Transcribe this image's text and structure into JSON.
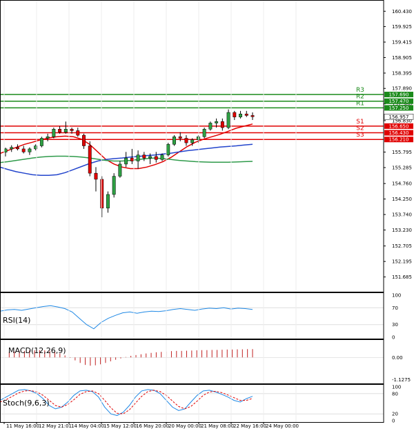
{
  "chart_data": {
    "type": "candlestick",
    "instrument": "",
    "price_axis": {
      "range": [
        151.2,
        160.8
      ],
      "ticks": [
        "160.430",
        "159.925",
        "159.415",
        "158.905",
        "158.395",
        "157.890",
        "157.380",
        "156.830",
        "155.795",
        "155.285",
        "154.760",
        "154.250",
        "153.740",
        "153.230",
        "152.705",
        "152.195",
        "151.685"
      ]
    },
    "time_axis": {
      "ticks": [
        "11 May 16:00",
        "12 May 21:01",
        "14 May 04:00",
        "15 May 12:00",
        "16 May 20:00",
        "20 May 00:00",
        "21 May 08:00",
        "22 May 16:00",
        "24 May 00:00"
      ]
    },
    "current_price": "156.957",
    "levels": {
      "resistance": [
        {
          "name": "R3",
          "value": 157.69,
          "label": "157.690"
        },
        {
          "name": "R2",
          "value": 157.47,
          "label": "157.470"
        },
        {
          "name": "R1",
          "value": 157.25,
          "label": "157.250"
        }
      ],
      "support": [
        {
          "name": "S1",
          "value": 156.65,
          "label": "156.650"
        },
        {
          "name": "S2",
          "value": 156.43,
          "label": "156.430"
        },
        {
          "name": "S3",
          "value": 156.21,
          "label": "156.210"
        }
      ],
      "resistance_color": "#1a8a1a",
      "support_color": "#e00000"
    },
    "candles": [
      [
        155.79,
        155.94,
        155.65,
        155.9
      ],
      [
        155.9,
        156.02,
        155.8,
        155.95
      ],
      [
        155.95,
        156.05,
        155.85,
        155.9
      ],
      [
        155.9,
        156.0,
        155.75,
        155.8
      ],
      [
        155.8,
        155.95,
        155.7,
        155.9
      ],
      [
        155.9,
        156.05,
        155.85,
        156.0
      ],
      [
        156.0,
        156.3,
        155.95,
        156.25
      ],
      [
        156.25,
        156.4,
        156.15,
        156.3
      ],
      [
        156.3,
        156.6,
        156.25,
        156.55
      ],
      [
        156.55,
        156.65,
        156.4,
        156.45
      ],
      [
        156.45,
        156.8,
        156.4,
        156.55
      ],
      [
        156.55,
        156.6,
        156.4,
        156.5
      ],
      [
        156.5,
        156.6,
        156.3,
        156.35
      ],
      [
        156.35,
        156.4,
        155.9,
        156.0
      ],
      [
        156.0,
        156.15,
        155.0,
        155.1
      ],
      [
        155.1,
        155.3,
        154.5,
        154.9
      ],
      [
        154.9,
        155.0,
        153.65,
        153.95
      ],
      [
        153.95,
        154.5,
        153.8,
        154.4
      ],
      [
        154.4,
        155.1,
        154.3,
        155.0
      ],
      [
        155.0,
        155.5,
        154.95,
        155.4
      ],
      [
        155.4,
        155.8,
        155.3,
        155.6
      ],
      [
        155.6,
        155.9,
        155.4,
        155.5
      ],
      [
        155.5,
        155.85,
        155.25,
        155.7
      ],
      [
        155.7,
        155.8,
        155.5,
        155.6
      ],
      [
        155.6,
        155.75,
        155.4,
        155.65
      ],
      [
        155.65,
        155.8,
        155.45,
        155.55
      ],
      [
        155.55,
        155.75,
        155.5,
        155.7
      ],
      [
        155.7,
        156.1,
        155.65,
        156.05
      ],
      [
        156.05,
        156.35,
        156.0,
        156.3
      ],
      [
        156.3,
        156.45,
        156.15,
        156.25
      ],
      [
        156.25,
        156.35,
        156.0,
        156.1
      ],
      [
        156.1,
        156.25,
        156.0,
        156.2
      ],
      [
        156.2,
        156.35,
        156.1,
        156.3
      ],
      [
        156.3,
        156.6,
        156.25,
        156.55
      ],
      [
        156.55,
        156.8,
        156.5,
        156.75
      ],
      [
        156.75,
        156.9,
        156.6,
        156.8
      ],
      [
        156.8,
        156.9,
        156.5,
        156.6
      ],
      [
        156.6,
        157.2,
        156.55,
        157.1
      ],
      [
        157.1,
        157.15,
        156.85,
        156.95
      ],
      [
        156.95,
        157.15,
        156.9,
        157.05
      ],
      [
        157.05,
        157.15,
        156.95,
        157.0
      ],
      [
        157.0,
        157.1,
        156.85,
        156.96
      ]
    ],
    "moving_averages": [
      {
        "color": "#e00000",
        "values": [
          155.75,
          155.85,
          155.95,
          156.05,
          156.12,
          156.2,
          156.26,
          156.3,
          156.32,
          156.3,
          156.22,
          156.05,
          155.8,
          155.55,
          155.4,
          155.3,
          155.25,
          155.25,
          155.3,
          155.38,
          155.48,
          155.62,
          155.8,
          155.98,
          156.12,
          156.22,
          156.3,
          156.38,
          156.48,
          156.58,
          156.65,
          156.72
        ]
      },
      {
        "color": "#2244cc",
        "values": [
          155.3,
          155.22,
          155.15,
          155.1,
          155.05,
          155.03,
          155.03,
          155.05,
          155.12,
          155.22,
          155.32,
          155.42,
          155.5,
          155.55,
          155.58,
          155.6,
          155.63,
          155.65,
          155.68,
          155.7,
          155.73,
          155.76,
          155.8,
          155.84,
          155.87,
          155.9,
          155.93,
          155.96,
          155.98,
          156.0,
          156.03,
          156.05
        ]
      },
      {
        "color": "#2e9a4a",
        "values": [
          155.45,
          155.48,
          155.52,
          155.56,
          155.6,
          155.63,
          155.65,
          155.66,
          155.66,
          155.65,
          155.63,
          155.6,
          155.56,
          155.52,
          155.5,
          155.5,
          155.52,
          155.55,
          155.58,
          155.6,
          155.58,
          155.55,
          155.52,
          155.5,
          155.48,
          155.47,
          155.46,
          155.46,
          155.46,
          155.47,
          155.48,
          155.49
        ]
      }
    ],
    "rsi": {
      "label": "RSI(14)",
      "ticks": [
        "100",
        "70",
        "30",
        "0"
      ],
      "range": [
        0,
        100
      ],
      "color": "#1e88e5",
      "values": [
        62,
        65,
        66,
        64,
        67,
        70,
        73,
        75,
        72,
        68,
        60,
        45,
        30,
        20,
        35,
        45,
        52,
        58,
        60,
        57,
        60,
        62,
        61,
        63,
        66,
        68,
        66,
        64,
        67,
        69,
        68,
        70,
        67,
        69,
        68,
        66
      ]
    },
    "macd": {
      "label": "MACD(12,26,9)",
      "ticks": [
        "0.00",
        "-1.1275"
      ],
      "range": [
        -1.25,
        0.85
      ],
      "bar_color": "#c02020",
      "values": [
        0.25,
        0.28,
        0.3,
        0.32,
        0.33,
        0.35,
        0.36,
        0.37,
        0.36,
        0.33,
        0.28,
        0.2,
        0.1,
        -0.02,
        -0.15,
        -0.28,
        -0.38,
        -0.42,
        -0.4,
        -0.35,
        -0.28,
        -0.2,
        -0.12,
        -0.05,
        0.02,
        0.08,
        0.12,
        0.16,
        0.2,
        0.23,
        0.26,
        0.28,
        0.3,
        0.32,
        0.33,
        0.33,
        0.34,
        0.35,
        0.36,
        0.37,
        0.37,
        0.38,
        0.38,
        0.39,
        0.4,
        0.4,
        0.41,
        0.41,
        0.42,
        0.42
      ]
    },
    "stoch": {
      "label": "Stoch(9,6,3)",
      "ticks": [
        "100",
        "80",
        "20",
        "0"
      ],
      "range": [
        0,
        100
      ],
      "k_color": "#1e88e5",
      "d_color": "#e00000",
      "k": [
        60,
        70,
        80,
        90,
        92,
        88,
        80,
        65,
        45,
        35,
        40,
        55,
        75,
        88,
        90,
        86,
        70,
        40,
        20,
        15,
        25,
        45,
        70,
        88,
        92,
        90,
        80,
        60,
        40,
        30,
        35,
        55,
        75,
        88,
        90,
        85,
        78,
        70,
        60,
        55,
        65,
        72
      ],
      "d": [
        55,
        62,
        72,
        82,
        88,
        89,
        85,
        75,
        60,
        45,
        40,
        48,
        62,
        78,
        86,
        88,
        80,
        60,
        38,
        22,
        20,
        32,
        52,
        72,
        86,
        90,
        86,
        75,
        58,
        42,
        35,
        42,
        58,
        75,
        85,
        87,
        83,
        76,
        68,
        60,
        60,
        66
      ]
    }
  }
}
